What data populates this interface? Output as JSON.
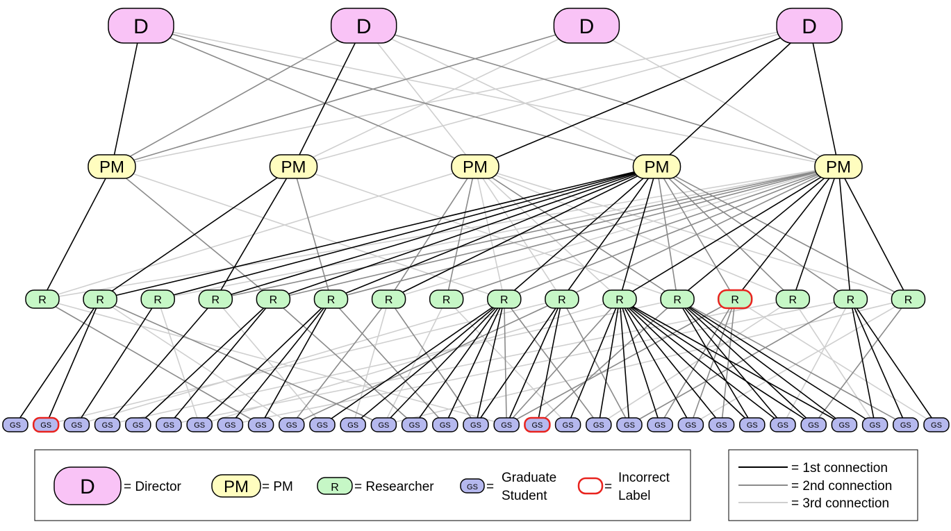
{
  "levels": {
    "director": {
      "label": "D",
      "count": 4,
      "fill": "#f9c3f6",
      "stroke": "#000000"
    },
    "pm": {
      "label": "PM",
      "count": 5,
      "fill": "#fffdbf",
      "stroke": "#000000"
    },
    "researcher": {
      "label": "R",
      "count": 16,
      "fill": "#c6f7c6",
      "stroke": "#000000",
      "incorrect": [
        12
      ]
    },
    "grad": {
      "label": "GS",
      "count": 31,
      "fill": "#b5b8ee",
      "stroke": "#000000",
      "incorrect": [
        1,
        17
      ]
    }
  },
  "colors": {
    "first": "#000000",
    "second": "#8a8a8a",
    "third": "#cfcfcf",
    "incorrect_stroke": "#e8231e"
  },
  "edges": {
    "director_pm": [
      [
        0,
        0,
        1
      ],
      [
        0,
        2,
        2
      ],
      [
        0,
        3,
        2
      ],
      [
        0,
        4,
        3
      ],
      [
        1,
        1,
        1
      ],
      [
        1,
        0,
        2
      ],
      [
        1,
        3,
        3
      ],
      [
        1,
        4,
        2
      ],
      [
        1,
        2,
        3
      ],
      [
        2,
        0,
        2
      ],
      [
        2,
        1,
        3
      ],
      [
        3,
        2,
        1
      ],
      [
        3,
        3,
        1
      ],
      [
        3,
        4,
        1
      ],
      [
        3,
        0,
        3
      ],
      [
        3,
        1,
        3
      ],
      [
        2,
        4,
        3
      ]
    ],
    "pm_r": [
      [
        0,
        0,
        1
      ],
      [
        0,
        4,
        2
      ],
      [
        0,
        8,
        3
      ],
      [
        1,
        1,
        1
      ],
      [
        1,
        3,
        1
      ],
      [
        1,
        5,
        2
      ],
      [
        1,
        11,
        3
      ],
      [
        2,
        6,
        2
      ],
      [
        2,
        8,
        3
      ],
      [
        2,
        9,
        3
      ],
      [
        2,
        10,
        3
      ],
      [
        2,
        11,
        2
      ],
      [
        2,
        13,
        3
      ],
      [
        2,
        15,
        3
      ],
      [
        2,
        0,
        3
      ],
      [
        2,
        7,
        2
      ],
      [
        3,
        1,
        1
      ],
      [
        3,
        2,
        1
      ],
      [
        3,
        3,
        1
      ],
      [
        3,
        4,
        1
      ],
      [
        3,
        5,
        1
      ],
      [
        3,
        6,
        1
      ],
      [
        3,
        8,
        1
      ],
      [
        3,
        9,
        1
      ],
      [
        3,
        10,
        1
      ],
      [
        3,
        11,
        2
      ],
      [
        3,
        12,
        2
      ],
      [
        3,
        13,
        2
      ],
      [
        3,
        14,
        2
      ],
      [
        3,
        15,
        2
      ],
      [
        4,
        10,
        1
      ],
      [
        4,
        11,
        1
      ],
      [
        4,
        12,
        1
      ],
      [
        4,
        13,
        1
      ],
      [
        4,
        14,
        1
      ],
      [
        4,
        15,
        1
      ],
      [
        4,
        0,
        3
      ],
      [
        4,
        3,
        2
      ],
      [
        4,
        4,
        2
      ],
      [
        4,
        5,
        2
      ],
      [
        4,
        6,
        3
      ],
      [
        4,
        7,
        2
      ],
      [
        4,
        8,
        2
      ],
      [
        4,
        9,
        2
      ],
      [
        4,
        2,
        3
      ]
    ],
    "r_gs": [
      [
        0,
        8,
        2
      ],
      [
        0,
        16,
        3
      ],
      [
        1,
        0,
        1
      ],
      [
        1,
        1,
        1
      ],
      [
        1,
        9,
        3
      ],
      [
        1,
        12,
        2
      ],
      [
        2,
        2,
        1
      ],
      [
        2,
        6,
        3
      ],
      [
        3,
        3,
        1
      ],
      [
        3,
        10,
        3
      ],
      [
        4,
        4,
        1
      ],
      [
        4,
        5,
        1
      ],
      [
        4,
        13,
        2
      ],
      [
        5,
        6,
        1
      ],
      [
        5,
        7,
        1
      ],
      [
        5,
        8,
        1
      ],
      [
        5,
        14,
        2
      ],
      [
        6,
        9,
        2
      ],
      [
        6,
        11,
        3
      ],
      [
        6,
        15,
        2
      ],
      [
        7,
        12,
        3
      ],
      [
        7,
        18,
        3
      ],
      [
        8,
        10,
        1
      ],
      [
        8,
        11,
        1
      ],
      [
        8,
        12,
        1
      ],
      [
        8,
        13,
        1
      ],
      [
        8,
        14,
        1
      ],
      [
        8,
        15,
        1
      ],
      [
        8,
        16,
        2
      ],
      [
        8,
        2,
        3
      ],
      [
        8,
        19,
        2
      ],
      [
        9,
        15,
        1
      ],
      [
        9,
        16,
        1
      ],
      [
        9,
        17,
        1
      ],
      [
        9,
        9,
        2
      ],
      [
        9,
        20,
        2
      ],
      [
        9,
        1,
        3
      ],
      [
        10,
        18,
        1
      ],
      [
        10,
        19,
        1
      ],
      [
        10,
        20,
        1
      ],
      [
        10,
        21,
        1
      ],
      [
        10,
        22,
        1
      ],
      [
        10,
        23,
        1
      ],
      [
        10,
        24,
        1
      ],
      [
        10,
        25,
        1
      ],
      [
        10,
        26,
        1
      ],
      [
        10,
        27,
        1
      ],
      [
        10,
        16,
        2
      ],
      [
        10,
        6,
        3
      ],
      [
        11,
        24,
        1
      ],
      [
        11,
        25,
        1
      ],
      [
        11,
        26,
        1
      ],
      [
        11,
        27,
        1
      ],
      [
        11,
        28,
        1
      ],
      [
        11,
        29,
        2
      ],
      [
        11,
        17,
        2
      ],
      [
        11,
        3,
        3
      ],
      [
        12,
        21,
        2
      ],
      [
        12,
        22,
        2
      ],
      [
        12,
        23,
        2
      ],
      [
        12,
        16,
        2
      ],
      [
        12,
        30,
        3
      ],
      [
        13,
        28,
        3
      ],
      [
        13,
        19,
        3
      ],
      [
        13,
        5,
        3
      ],
      [
        14,
        28,
        1
      ],
      [
        14,
        29,
        1
      ],
      [
        14,
        30,
        1
      ],
      [
        14,
        20,
        2
      ],
      [
        14,
        25,
        3
      ],
      [
        14,
        7,
        3
      ],
      [
        15,
        26,
        2
      ],
      [
        15,
        22,
        3
      ],
      [
        15,
        12,
        3
      ]
    ]
  },
  "legend_left": {
    "director": {
      "icon": "D",
      "text": "= Director"
    },
    "pm": {
      "icon": "PM",
      "text": "= PM"
    },
    "researcher": {
      "icon": "R",
      "text": "= Researcher"
    },
    "grad": {
      "icon": "GS",
      "text_line1": "Graduate",
      "text_line2": "Student",
      "eq": "="
    },
    "incorrect": {
      "eq": "=",
      "text_line1": "Incorrect",
      "text_line2": "Label"
    }
  },
  "legend_right": {
    "first": "= 1st connection",
    "second": "= 2nd connection",
    "third": "= 3rd connection"
  }
}
